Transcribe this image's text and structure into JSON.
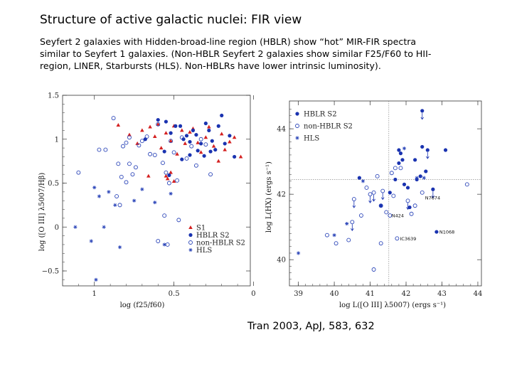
{
  "slide": {
    "title": "Structure of active galactic nuclei:  FIR view",
    "body_lines": [
      "Seyfert 2 galaxies with Hidden-broad-line region (HBLR) show “hot” MIR-FIR spectra",
      "similar to Seyfert 1 galaxies. (Non-HBLR Seyfert 2 galaxies show similar F25/F60 to HII-",
      "region, LINER, Starbursts (HLS). Non-HBLRs have lower intrinsic luminosity)."
    ],
    "citation": "Tran 2003, ApJ, 583, 632"
  },
  "colors": {
    "s1": "#d42020",
    "hblr": "#1a33b0",
    "nonhblr": "#2a44b8",
    "hls": "#2a44b8",
    "axis": "#333333"
  },
  "chart_data": [
    {
      "type": "scatter",
      "xlabel": "log (f25/f60)",
      "ylabel": "log ([O III] λ5007/Hβ)",
      "x_reversed": true,
      "xlim": [
        1.2,
        0.02
      ],
      "ylim": [
        -0.67,
        1.5
      ],
      "xticks": [
        "1",
        "0.5",
        "0"
      ],
      "yticks": [
        "1.5",
        "1",
        "0.5",
        "0",
        "−0.5"
      ],
      "legend_position": "bottom-right",
      "series": [
        {
          "name": "S1",
          "marker": "triangle",
          "points": [
            [
              0.85,
              1.16
            ],
            [
              0.78,
              1.05
            ],
            [
              0.73,
              0.95
            ],
            [
              0.7,
              1.1
            ],
            [
              0.65,
              1.14
            ],
            [
              0.62,
              1.03
            ],
            [
              0.6,
              1.17
            ],
            [
              0.58,
              0.9
            ],
            [
              0.55,
              1.07
            ],
            [
              0.52,
              0.98
            ],
            [
              0.5,
              1.15
            ],
            [
              0.48,
              0.83
            ],
            [
              0.45,
              1.1
            ],
            [
              0.43,
              0.95
            ],
            [
              0.4,
              1.08
            ],
            [
              0.38,
              1.12
            ],
            [
              0.35,
              0.96
            ],
            [
              0.33,
              0.85
            ],
            [
              0.3,
              1.02
            ],
            [
              0.28,
              1.14
            ],
            [
              0.25,
              0.92
            ],
            [
              0.22,
              0.75
            ],
            [
              0.2,
              1.06
            ],
            [
              0.18,
              0.88
            ],
            [
              0.15,
              0.97
            ],
            [
              0.12,
              1.02
            ],
            [
              0.08,
              0.8
            ],
            [
              0.66,
              0.58
            ],
            [
              0.55,
              0.58
            ],
            [
              0.52,
              0.62
            ],
            [
              0.5,
              0.52
            ],
            [
              0.54,
              0.55
            ]
          ]
        },
        {
          "name": "HBLR S2",
          "marker": "filled-circle",
          "points": [
            [
              0.68,
              1.0
            ],
            [
              0.6,
              1.22
            ],
            [
              0.55,
              1.2
            ],
            [
              0.52,
              1.07
            ],
            [
              0.49,
              1.15
            ],
            [
              0.46,
              1.15
            ],
            [
              0.44,
              1.0
            ],
            [
              0.42,
              1.04
            ],
            [
              0.4,
              0.97
            ],
            [
              0.38,
              1.1
            ],
            [
              0.36,
              1.05
            ],
            [
              0.33,
              0.95
            ],
            [
              0.3,
              1.18
            ],
            [
              0.28,
              1.1
            ],
            [
              0.26,
              0.98
            ],
            [
              0.24,
              0.88
            ],
            [
              0.22,
              1.15
            ],
            [
              0.2,
              1.27
            ],
            [
              0.18,
              0.95
            ],
            [
              0.15,
              1.04
            ],
            [
              0.12,
              0.8
            ],
            [
              0.45,
              0.77
            ],
            [
              0.53,
              0.59
            ],
            [
              0.4,
              0.82
            ],
            [
              0.35,
              0.87
            ],
            [
              0.56,
              0.86
            ],
            [
              0.31,
              0.81
            ],
            [
              0.27,
              0.86
            ]
          ]
        },
        {
          "name": "non-HBLR S2",
          "marker": "open-circle",
          "points": [
            [
              1.1,
              0.62
            ],
            [
              0.97,
              0.88
            ],
            [
              0.93,
              0.88
            ],
            [
              0.88,
              1.24
            ],
            [
              0.85,
              0.72
            ],
            [
              0.82,
              0.92
            ],
            [
              0.8,
              0.96
            ],
            [
              0.78,
              1.02
            ],
            [
              0.76,
              0.6
            ],
            [
              0.74,
              0.68
            ],
            [
              0.72,
              0.93
            ],
            [
              0.7,
              0.98
            ],
            [
              0.67,
              1.03
            ],
            [
              0.65,
              0.83
            ],
            [
              0.62,
              0.82
            ],
            [
              0.6,
              1.17
            ],
            [
              0.57,
              0.73
            ],
            [
              0.55,
              0.62
            ],
            [
              0.53,
              0.5
            ],
            [
              0.5,
              0.85
            ],
            [
              0.48,
              0.53
            ],
            [
              0.45,
              1.02
            ],
            [
              0.42,
              0.78
            ],
            [
              0.39,
              0.92
            ],
            [
              0.36,
              0.7
            ],
            [
              0.33,
              1.0
            ],
            [
              0.3,
              0.94
            ],
            [
              0.27,
              0.6
            ],
            [
              0.52,
              0.98
            ],
            [
              0.83,
              0.57
            ],
            [
              0.8,
              0.51
            ],
            [
              0.86,
              0.35
            ],
            [
              0.84,
              0.25
            ],
            [
              0.56,
              0.13
            ],
            [
              0.47,
              0.08
            ],
            [
              0.6,
              -0.16
            ],
            [
              0.54,
              -0.2
            ],
            [
              0.78,
              0.72
            ]
          ]
        },
        {
          "name": "HLS",
          "marker": "asterisk",
          "points": [
            [
              1.12,
              0.0
            ],
            [
              1.02,
              -0.16
            ],
            [
              1.0,
              0.45
            ],
            [
              0.97,
              0.35
            ],
            [
              0.94,
              0.0
            ],
            [
              0.91,
              0.4
            ],
            [
              0.87,
              0.25
            ],
            [
              0.84,
              -0.23
            ],
            [
              0.7,
              0.43
            ],
            [
              0.62,
              0.28
            ],
            [
              0.56,
              -0.2
            ],
            [
              0.52,
              0.38
            ],
            [
              0.99,
              -0.6
            ],
            [
              0.75,
              0.3
            ]
          ]
        }
      ]
    },
    {
      "type": "scatter",
      "xlabel": "log L([O III] λ5007) (ergs s⁻¹)",
      "ylabel": "log L(HX) (ergs s⁻¹)",
      "xlim": [
        38.75,
        44.1
      ],
      "ylim": [
        39.2,
        44.85
      ],
      "xticks": [
        "39",
        "40",
        "41",
        "42",
        "43",
        "44"
      ],
      "yticks": [
        "40",
        "42",
        "44"
      ],
      "reference_lines": {
        "x": 41.52,
        "y": 42.45
      },
      "legend_position": "top-left",
      "arrows": "downward arrows mark upper limits",
      "annotations": [
        {
          "label": "N7674",
          "x": 42.45,
          "y": 41.9
        },
        {
          "label": "N424",
          "x": 41.52,
          "y": 41.35
        },
        {
          "label": "N1068",
          "x": 42.85,
          "y": 40.85
        },
        {
          "label": "IC3639",
          "x": 41.75,
          "y": 40.65
        }
      ],
      "series": [
        {
          "name": "HBLR S2",
          "marker": "filled-circle",
          "points": [
            [
              40.7,
              42.5
            ],
            [
              41.55,
              42.05
            ],
            [
              41.7,
              42.45
            ],
            [
              41.8,
              42.95
            ],
            [
              41.85,
              43.25
            ],
            [
              41.9,
              43.05
            ],
            [
              41.95,
              42.3
            ],
            [
              42.05,
              42.2
            ],
            [
              42.1,
              41.6
            ],
            [
              42.25,
              43.05
            ],
            [
              42.3,
              42.45
            ],
            [
              42.4,
              42.55
            ],
            [
              42.45,
              43.45
            ],
            [
              42.55,
              42.7
            ],
            [
              42.6,
              43.35
            ],
            [
              42.75,
              42.15
            ],
            [
              42.85,
              40.85
            ],
            [
              43.1,
              43.35
            ],
            [
              42.45,
              44.55
            ],
            [
              41.8,
              43.35
            ],
            [
              41.3,
              41.65
            ]
          ]
        },
        {
          "name": "non-HBLR S2",
          "marker": "open-circle",
          "points": [
            [
              39.8,
              40.75
            ],
            [
              40.05,
              40.5
            ],
            [
              40.4,
              40.6
            ],
            [
              40.5,
              41.15
            ],
            [
              40.55,
              41.85
            ],
            [
              40.75,
              41.35
            ],
            [
              40.9,
              42.2
            ],
            [
              41.0,
              42.0
            ],
            [
              41.1,
              42.05
            ],
            [
              41.2,
              42.55
            ],
            [
              41.3,
              41.65
            ],
            [
              41.35,
              42.1
            ],
            [
              41.45,
              41.45
            ],
            [
              41.55,
              41.35
            ],
            [
              41.65,
              41.95
            ],
            [
              41.7,
              42.8
            ],
            [
              41.75,
              40.65
            ],
            [
              41.85,
              42.8
            ],
            [
              42.05,
              41.8
            ],
            [
              42.15,
              41.4
            ],
            [
              42.25,
              41.65
            ],
            [
              42.45,
              42.05
            ],
            [
              43.7,
              42.3
            ],
            [
              41.6,
              42.65
            ],
            [
              41.1,
              39.7
            ],
            [
              41.3,
              40.5
            ]
          ]
        },
        {
          "name": "HLS",
          "marker": "asterisk",
          "points": [
            [
              39.0,
              40.2
            ],
            [
              40.0,
              40.75
            ],
            [
              40.35,
              41.1
            ],
            [
              41.95,
              43.4
            ],
            [
              40.8,
              42.4
            ],
            [
              42.3,
              42.5
            ],
            [
              42.5,
              42.5
            ]
          ]
        }
      ]
    }
  ]
}
